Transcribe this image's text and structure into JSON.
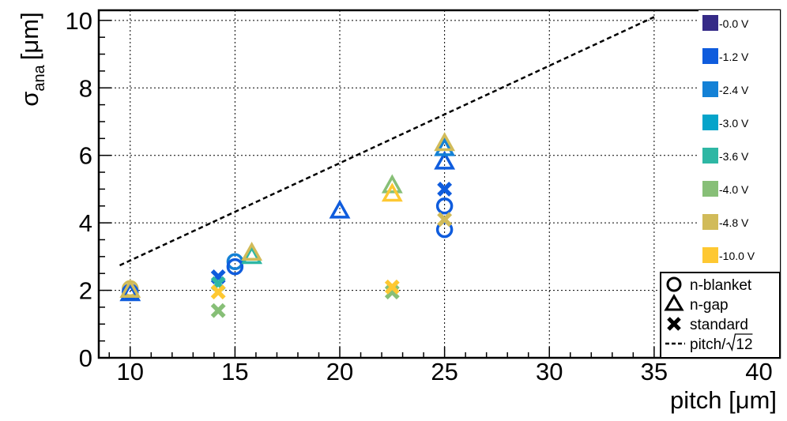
{
  "chart_data": {
    "type": "scatter",
    "xlabel": "pitch [μm]",
    "ylabel": "σ",
    "ylabel_sub": "ana",
    "ylabel_unit": "[μm]",
    "xlim": [
      8.5,
      41
    ],
    "ylim": [
      0,
      10.3
    ],
    "x_ticks": [
      10,
      15,
      20,
      25,
      30,
      35,
      40
    ],
    "y_ticks": [
      0,
      2,
      4,
      6,
      8,
      10
    ],
    "grid": true,
    "legend_placement": "bottom-right",
    "legend": [
      {
        "marker": "circle",
        "label": "n-blanket"
      },
      {
        "marker": "triangle",
        "label": "n-gap"
      },
      {
        "marker": "cross",
        "label": "standard"
      },
      {
        "marker": "dashed-line",
        "label": "pitch/",
        "sqrt_arg": "12"
      }
    ],
    "color_scale": [
      {
        "label": "-0.0 V",
        "color": "#352a87"
      },
      {
        "label": "-1.2 V",
        "color": "#0f5cdd"
      },
      {
        "label": "-2.4 V",
        "color": "#1481d6"
      },
      {
        "label": "-3.0 V",
        "color": "#06a4ca"
      },
      {
        "label": "-3.6 V",
        "color": "#2eb7a4"
      },
      {
        "label": "-4.0 V",
        "color": "#87bf77"
      },
      {
        "label": "-4.8 V",
        "color": "#d1bb59"
      },
      {
        "label": "-10.0 V",
        "color": "#fec832"
      }
    ],
    "reference_line": {
      "label": "pitch/√12",
      "x": [
        9.5,
        35
      ],
      "y": [
        2.74,
        10.1
      ]
    },
    "series": [
      {
        "marker": "circle",
        "points": [
          {
            "x": 10,
            "y": 2.05,
            "color": "#d1bb59"
          },
          {
            "x": 10,
            "y": 1.95,
            "color": "#0f5cdd"
          },
          {
            "x": 15,
            "y": 2.85,
            "color": "#1481d6"
          },
          {
            "x": 15,
            "y": 2.7,
            "color": "#0f5cdd"
          },
          {
            "x": 25,
            "y": 4.5,
            "color": "#0f5cdd"
          },
          {
            "x": 25,
            "y": 3.8,
            "color": "#0f5cdd"
          }
        ]
      },
      {
        "marker": "triangle",
        "points": [
          {
            "x": 10,
            "y": 1.9,
            "color": "#0f5cdd"
          },
          {
            "x": 10,
            "y": 2.0,
            "color": "#d1bb59"
          },
          {
            "x": 15.8,
            "y": 3.0,
            "color": "#2eb7a4"
          },
          {
            "x": 15.8,
            "y": 3.1,
            "color": "#d1bb59"
          },
          {
            "x": 20,
            "y": 4.35,
            "color": "#0f5cdd"
          },
          {
            "x": 22.5,
            "y": 5.1,
            "color": "#87bf77"
          },
          {
            "x": 22.5,
            "y": 4.85,
            "color": "#fec832"
          },
          {
            "x": 25,
            "y": 5.8,
            "color": "#0f5cdd"
          },
          {
            "x": 25,
            "y": 6.2,
            "color": "#1481d6"
          },
          {
            "x": 25,
            "y": 6.35,
            "color": "#d1bb59"
          }
        ]
      },
      {
        "marker": "cross",
        "points": [
          {
            "x": 14.2,
            "y": 2.4,
            "color": "#0f5cdd"
          },
          {
            "x": 14.2,
            "y": 2.2,
            "color": "#2eb7a4"
          },
          {
            "x": 14.2,
            "y": 1.95,
            "color": "#fec832"
          },
          {
            "x": 14.2,
            "y": 1.4,
            "color": "#87bf77"
          },
          {
            "x": 22.5,
            "y": 1.95,
            "color": "#87bf77"
          },
          {
            "x": 22.5,
            "y": 2.1,
            "color": "#fec832"
          },
          {
            "x": 25,
            "y": 5.0,
            "color": "#0f5cdd"
          },
          {
            "x": 25,
            "y": 4.1,
            "color": "#d1bb59"
          }
        ]
      }
    ]
  }
}
